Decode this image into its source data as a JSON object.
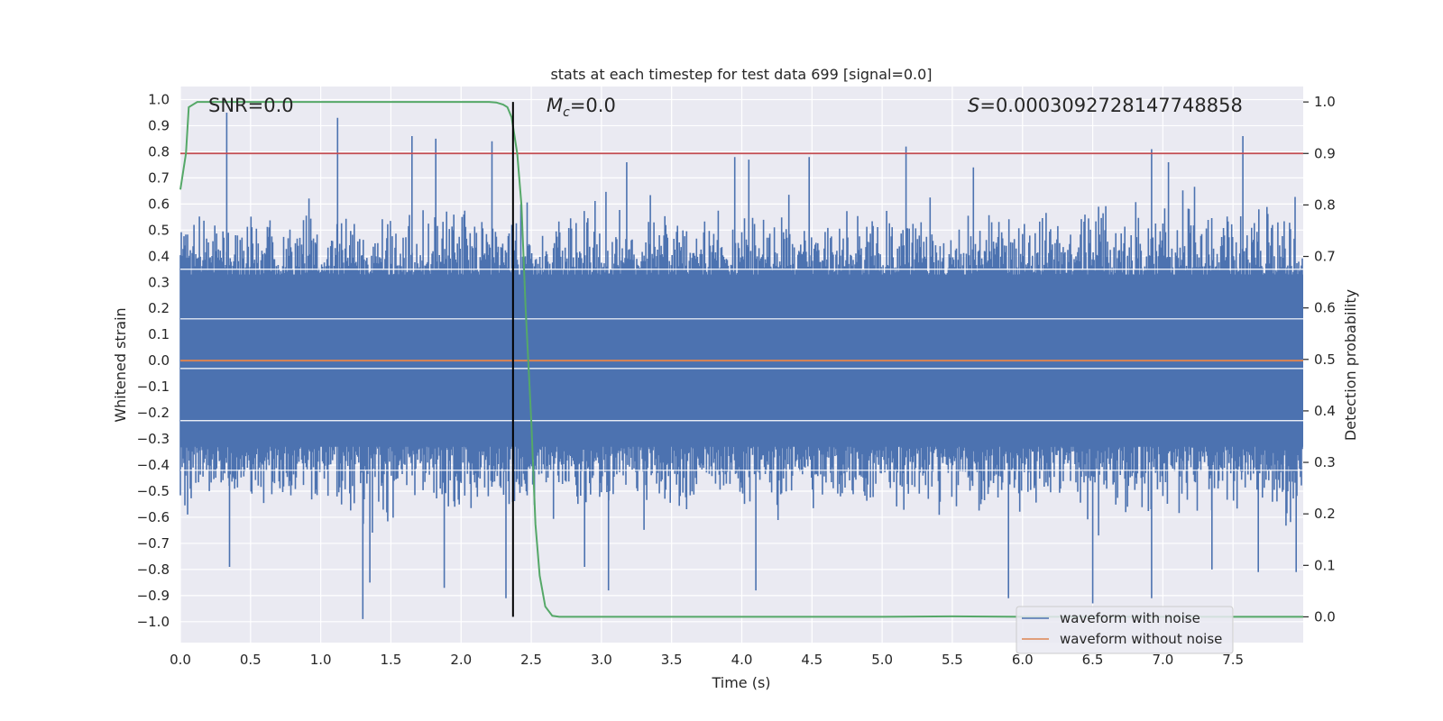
{
  "chart_data": {
    "type": "line",
    "title": "stats at each timestep for test data 699 [signal=0.0]",
    "xlabel": "Time (s)",
    "ylabel_left": "Whitened strain",
    "ylabel_right": "Detection probability",
    "xlim": [
      0.0,
      8.0
    ],
    "ylim_left": [
      -1.08,
      1.05
    ],
    "ylim_right": [
      -0.05,
      1.03
    ],
    "x_ticks": [
      "0.0",
      "0.5",
      "1.0",
      "1.5",
      "2.0",
      "2.5",
      "3.0",
      "3.5",
      "4.0",
      "4.5",
      "5.0",
      "5.5",
      "6.0",
      "6.5",
      "7.0",
      "7.5"
    ],
    "y_ticks_left": [
      "1.0",
      "0.9",
      "0.8",
      "0.7",
      "0.6",
      "0.5",
      "0.4",
      "0.3",
      "0.2",
      "0.1",
      "0.0",
      "-0.1",
      "-0.2",
      "-0.3",
      "-0.4",
      "-0.5",
      "-0.6",
      "-0.7",
      "-0.8",
      "-0.9",
      "-1.0"
    ],
    "y_ticks_right": [
      "1.0",
      "0.9",
      "0.8",
      "0.7",
      "0.6",
      "0.5",
      "0.4",
      "0.3",
      "0.2",
      "0.1",
      "0.0"
    ],
    "grid": true,
    "annotations": {
      "snr": "SNR=0.0",
      "mc_symbol": "M",
      "mc_sub": "c",
      "mc_value": "=0.0",
      "s_symbol": "S",
      "s_value": "=0.0003092728147748858"
    },
    "legend": {
      "placement": "lower-right",
      "entries": [
        "waveform with noise",
        "waveform without noise"
      ]
    },
    "series": [
      {
        "name": "waveform with noise",
        "axis": "left",
        "color": "#4c72b0",
        "description_range": [
          -1.0,
          0.95
        ],
        "peaks_up": [
          [
            0.33,
            0.95
          ],
          [
            1.12,
            0.93
          ],
          [
            1.65,
            0.86
          ],
          [
            1.82,
            0.85
          ],
          [
            2.22,
            0.84
          ],
          [
            3.18,
            0.76
          ],
          [
            3.95,
            0.78
          ],
          [
            4.05,
            0.77
          ],
          [
            4.48,
            0.78
          ],
          [
            5.17,
            0.82
          ],
          [
            5.65,
            0.74
          ],
          [
            6.92,
            0.81
          ],
          [
            7.04,
            0.76
          ],
          [
            7.57,
            0.86
          ]
        ],
        "peaks_down": [
          [
            0.35,
            -0.79
          ],
          [
            1.3,
            -0.99
          ],
          [
            1.35,
            -0.85
          ],
          [
            1.88,
            -0.87
          ],
          [
            2.32,
            -0.91
          ],
          [
            2.88,
            -0.79
          ],
          [
            3.05,
            -0.88
          ],
          [
            4.1,
            -0.88
          ],
          [
            5.9,
            -0.91
          ],
          [
            6.5,
            -0.93
          ],
          [
            6.92,
            -0.91
          ],
          [
            7.35,
            -0.8
          ],
          [
            7.68,
            -0.81
          ],
          [
            7.95,
            -0.81
          ]
        ]
      },
      {
        "name": "waveform without noise",
        "axis": "left",
        "color": "#dd8452",
        "x": [
          0.0,
          8.0
        ],
        "y": [
          0.0,
          0.0
        ]
      },
      {
        "name": "",
        "axis": "right",
        "color": "#55a868",
        "x": [
          0.0,
          0.04,
          0.06,
          0.12,
          0.3,
          1.0,
          1.5,
          2.0,
          2.1,
          2.2,
          2.25,
          2.3,
          2.33,
          2.36,
          2.4,
          2.43,
          2.46,
          2.5,
          2.53,
          2.56,
          2.6,
          2.65,
          2.7,
          3.0,
          4.0,
          5.0,
          5.5,
          6.0,
          7.0,
          8.0
        ],
        "y": [
          0.83,
          0.9,
          0.99,
          1.0,
          1.0,
          1.0,
          1.0,
          1.0,
          1.0,
          1.0,
          0.999,
          0.995,
          0.99,
          0.97,
          0.9,
          0.8,
          0.6,
          0.38,
          0.18,
          0.08,
          0.02,
          0.002,
          0.0,
          0.0,
          0.0,
          0.0,
          0.001,
          0.0,
          0.0,
          0.0
        ]
      }
    ],
    "threshold_line": {
      "axis": "right",
      "y": 0.9,
      "color": "#c44e52"
    },
    "event_marker": {
      "x": 2.37,
      "color": "#000000"
    }
  }
}
